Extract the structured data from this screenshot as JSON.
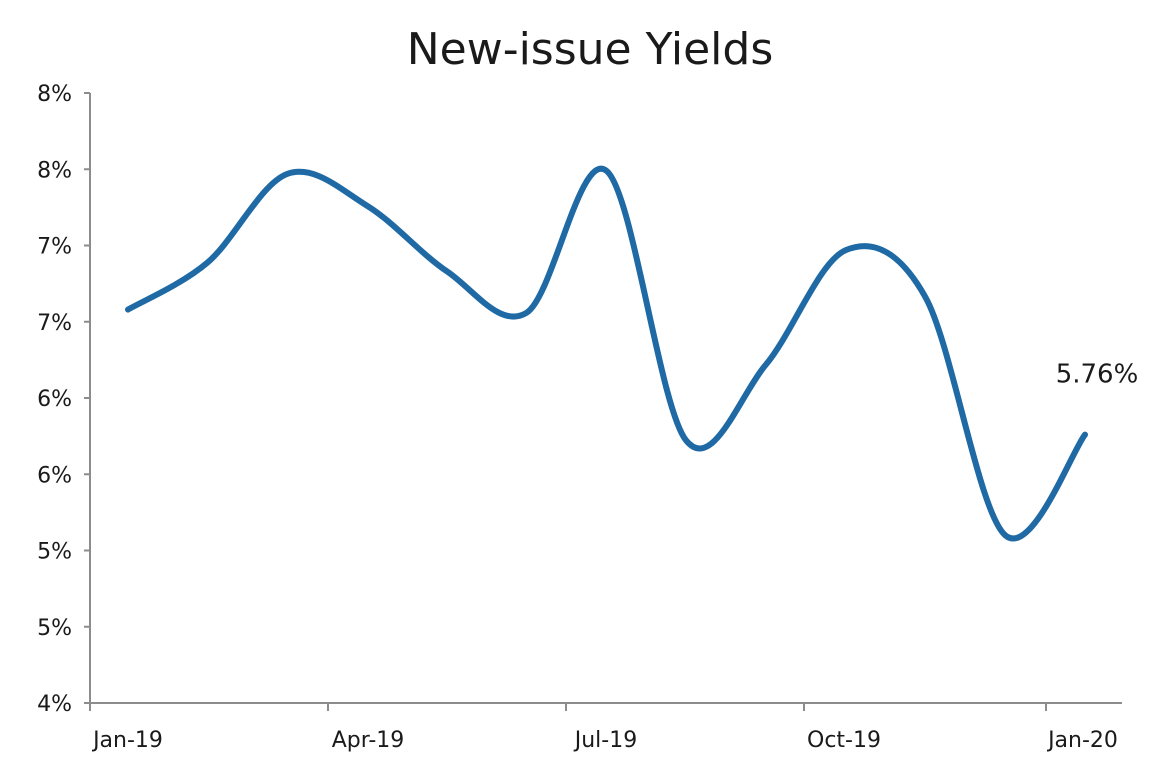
{
  "chart_data": {
    "type": "line",
    "title": "New-issue Yields",
    "xlabel": "",
    "ylabel": "",
    "grid": false,
    "legend": "none",
    "x_ticks": [
      "Jan-19",
      "Apr-19",
      "Jul-19",
      "Oct-19",
      "Jan-20"
    ],
    "y_ticks": [
      "4%",
      "5%",
      "5%",
      "6%",
      "6%",
      "7%",
      "7%",
      "8%",
      "8%"
    ],
    "ylim": [
      4.0,
      8.0
    ],
    "series": [
      {
        "color": "#1f6aa5",
        "x": [
          "2019-01",
          "2019-02",
          "2019-03",
          "2019-04",
          "2019-05",
          "2019-06",
          "2019-07",
          "2019-08",
          "2019-09",
          "2019-10",
          "2019-11",
          "2019-12",
          "2020-01"
        ],
        "values": [
          6.58,
          6.89,
          7.47,
          7.26,
          6.83,
          6.56,
          7.49,
          5.72,
          6.22,
          6.97,
          6.66,
          5.1,
          5.76
        ]
      }
    ],
    "annotations": [
      {
        "text": "5.76%",
        "x": "2020-01",
        "y": 5.76
      }
    ]
  }
}
